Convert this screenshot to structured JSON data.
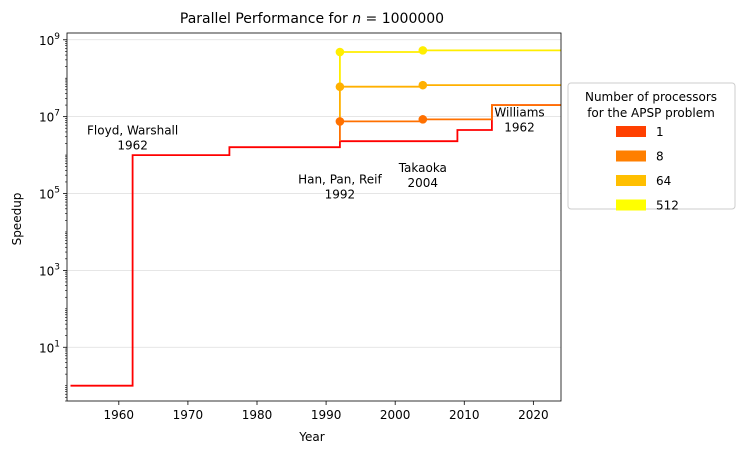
{
  "chart_data": {
    "type": "line",
    "title_prefix": "Parallel Performance for ",
    "title_var": "n",
    "title_suffix": " = 1000000",
    "xlabel": "Year",
    "ylabel": "Speedup",
    "xlim": [
      1952.5,
      2024
    ],
    "ylim": [
      0.4,
      1500000000
    ],
    "yscale": "log",
    "xticks": [
      1960,
      1970,
      1980,
      1990,
      2000,
      2010,
      2020
    ],
    "yticks": [
      {
        "value": 10,
        "base": "10",
        "exp": "1"
      },
      {
        "value": 1000,
        "base": "10",
        "exp": "3"
      },
      {
        "value": 100000,
        "base": "10",
        "exp": "5"
      },
      {
        "value": 10000000,
        "base": "10",
        "exp": "7"
      },
      {
        "value": 1000000000,
        "base": "10",
        "exp": "9"
      }
    ],
    "grid": "horizontal",
    "series": [
      {
        "name": "1",
        "color": "#ff0000",
        "x": [
          1953,
          1962,
          1962,
          1976,
          1976,
          1992,
          1992,
          2009,
          2009,
          2014,
          2014,
          2024
        ],
        "y": [
          1,
          1,
          1000000,
          1000000,
          1600000,
          1600000,
          2300000,
          2300000,
          4500000,
          4500000,
          20000000,
          20000000
        ],
        "markers": []
      },
      {
        "name": "8",
        "color": "#ff7000",
        "x": [
          1992,
          1992,
          2004,
          2004,
          2014,
          2014,
          2024
        ],
        "y": [
          2300000,
          7500000,
          7500000,
          8500000,
          8500000,
          20000000,
          20000000
        ],
        "markers": [
          [
            1992,
            7500000
          ],
          [
            2004,
            8500000
          ]
        ]
      },
      {
        "name": "64",
        "color": "#ffb000",
        "x": [
          1992,
          1992,
          2004,
          2004,
          2024
        ],
        "y": [
          7500000,
          60000000,
          60000000,
          66000000,
          66000000
        ],
        "markers": [
          [
            1992,
            60000000
          ],
          [
            2004,
            66000000
          ]
        ]
      },
      {
        "name": "512",
        "color": "#ffee00",
        "x": [
          1992,
          1992,
          2004,
          2004,
          2024
        ],
        "y": [
          60000000,
          480000000,
          480000000,
          530000000,
          530000000
        ],
        "markers": [
          [
            1992,
            480000000
          ],
          [
            2004,
            530000000
          ]
        ]
      }
    ],
    "annotations": [
      {
        "line1": "Floyd, Warshall",
        "line2": "1962",
        "x": 1962,
        "y": 3000000
      },
      {
        "line1": "Han, Pan, Reif",
        "line2": "1992",
        "x": 1992,
        "y": 160000
      },
      {
        "line1": "Takaoka",
        "line2": "2004",
        "x": 2004,
        "y": 320000
      },
      {
        "line1": "Williams",
        "line2": "1962",
        "x": 2018,
        "y": 9000000
      }
    ],
    "legend": {
      "title_line1": "Number of processors",
      "title_line2": "for the APSP problem",
      "placement": "right",
      "entries": [
        {
          "label": "1",
          "color": "#ff4000"
        },
        {
          "label": "8",
          "color": "#ff7f00"
        },
        {
          "label": "64",
          "color": "#ffbf00"
        },
        {
          "label": "512",
          "color": "#ffff00"
        }
      ]
    }
  }
}
